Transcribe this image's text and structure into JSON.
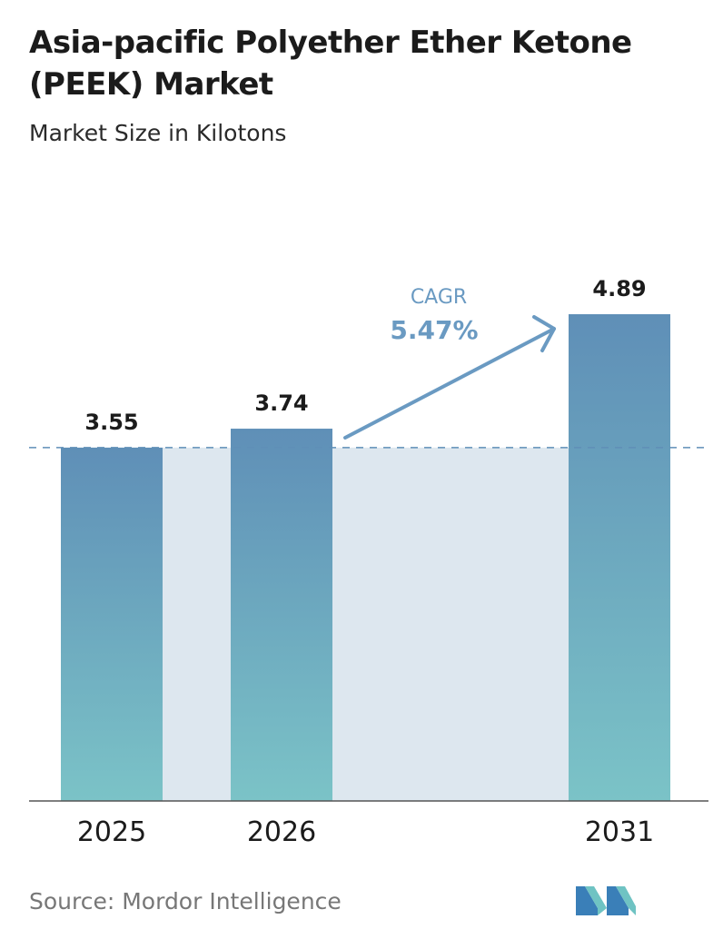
{
  "title": "Asia-pacific Polyether Ether Ketone (PEEK) Market",
  "subtitle": "Market Size in Kilotons",
  "source": "Source:  Mordor Intelligence",
  "colors": {
    "bar_top": "#5f8fb7",
    "bar_bottom": "#7bc3c7",
    "band": "#dde7ef",
    "dash": "#5f8fb7",
    "cagr": "#6a9ac2",
    "axis": "#555555"
  },
  "chart_data": {
    "type": "bar",
    "categories": [
      "2025",
      "2026",
      "2031"
    ],
    "values": [
      3.55,
      3.74,
      4.89
    ],
    "data_labels": [
      "3.55",
      "3.74",
      "4.89"
    ],
    "ylim": [
      0,
      5.5
    ],
    "grid": false,
    "annotation": {
      "label": "CAGR",
      "value": "5.47%"
    }
  }
}
